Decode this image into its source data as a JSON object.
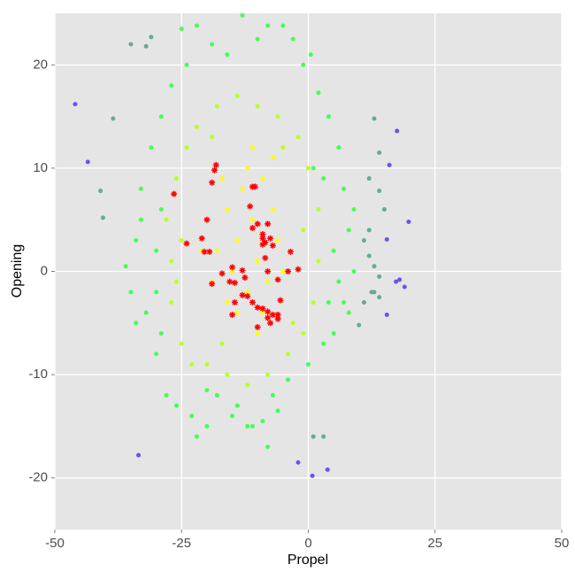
{
  "chart_data": {
    "type": "scatter",
    "xlabel": "Propel",
    "ylabel": "Opening",
    "xlim": [
      -50,
      50
    ],
    "ylim": [
      -25,
      25
    ],
    "xticks": [
      -50,
      -25,
      0,
      25,
      50
    ],
    "yticks": [
      -20,
      -10,
      0,
      10,
      20
    ],
    "grid": true,
    "series": [
      {
        "color": "#44ff55",
        "marker": "circle",
        "x": [
          -35,
          -34,
          -33,
          -32,
          -31,
          -30,
          -29,
          -28,
          -27,
          -26,
          -25,
          -24,
          -23,
          -22,
          -20,
          -19,
          -18,
          -16,
          -14,
          -13,
          -12,
          -10,
          -9,
          -8,
          -7,
          -6,
          -5,
          -4,
          -3,
          -1,
          0,
          0.5,
          2,
          3,
          4,
          5,
          6,
          7,
          8,
          8,
          9,
          9,
          7,
          -36,
          -34,
          -33,
          -30,
          -30,
          -29,
          -29,
          -15,
          -20,
          -22,
          -11,
          -8,
          1,
          3,
          4,
          5,
          6
        ],
        "values": [
          -2,
          3,
          8,
          -4,
          12,
          -8,
          15,
          -12,
          18,
          -13,
          23.5,
          20,
          -14,
          23.8,
          -11.5,
          22,
          -12,
          21,
          -13,
          24.8,
          -15,
          22.5,
          -14.5,
          23.8,
          -12,
          -13.5,
          23.8,
          -10.5,
          22.5,
          20,
          -9,
          21,
          17.3,
          -7,
          15,
          -6,
          12,
          8,
          -4,
          4,
          0,
          6,
          -3,
          0.5,
          -5,
          5,
          2,
          -2,
          6,
          -6,
          -14,
          -15,
          -16,
          -15,
          -17,
          10,
          9,
          -3,
          2,
          -1
        ]
      },
      {
        "color": "#bbff22",
        "marker": "circle",
        "x": [
          -28,
          -27,
          -26,
          -25,
          -24,
          -23,
          -22,
          -20,
          -18,
          -16,
          -14,
          -12,
          -10,
          -8,
          -6,
          -4,
          -2,
          -1,
          0,
          1,
          2,
          2,
          -1,
          -27,
          -26,
          -25,
          -19,
          -5,
          -3,
          -17
        ],
        "values": [
          5,
          -3,
          9,
          -7,
          12,
          -9,
          14,
          -9,
          16,
          -10,
          17,
          -11,
          16,
          -10,
          15,
          -8,
          13,
          -6,
          10,
          -3,
          6,
          1,
          4,
          1,
          -1,
          3,
          13,
          12,
          -5,
          -7
        ]
      },
      {
        "color": "#ffff00",
        "marker": "circle",
        "x": [
          -20,
          -18,
          -16,
          -15,
          -14,
          -13,
          -12,
          -11,
          -10,
          -9,
          -8,
          -7,
          -6,
          -17,
          -19,
          -12,
          -14,
          -9,
          -5,
          -21,
          -16,
          -11,
          -10,
          -7
        ],
        "values": [
          5,
          2,
          6,
          0,
          3,
          8,
          -2,
          5,
          1,
          9,
          -1,
          6,
          3,
          9,
          -1,
          10,
          -4,
          -4,
          0,
          2,
          -3,
          12,
          -6,
          11
        ]
      },
      {
        "color": "#66aa99",
        "marker": "circle",
        "x": [
          -41,
          -40.5,
          -38.5,
          -35,
          -32,
          -31,
          13,
          12,
          14,
          14,
          15,
          12,
          13,
          14,
          13,
          14,
          11,
          12,
          1,
          3,
          11,
          10,
          12.5
        ],
        "values": [
          7.8,
          5.2,
          14.8,
          22,
          21.8,
          22.7,
          14.8,
          9,
          11.5,
          7.8,
          6,
          1.5,
          0.5,
          -0.5,
          -2,
          -2.5,
          3,
          4,
          -16,
          -16,
          -3,
          -5.2,
          -2
        ]
      },
      {
        "color": "#6655ee",
        "marker": "circle",
        "x": [
          -46,
          -43.5,
          -33.5,
          -2,
          0.8,
          3.8,
          17.5,
          19.8,
          18,
          19,
          17.3,
          15.5,
          15.5,
          16
        ],
        "values": [
          16.2,
          10.6,
          -17.8,
          -18.5,
          -19.8,
          -19.2,
          13.6,
          4.8,
          -0.8,
          -1.5,
          -1,
          -4.2,
          3.1,
          10.3
        ]
      },
      {
        "color": "#ff0000",
        "marker": "star",
        "x": [
          -26.5,
          -24,
          -21,
          -20.5,
          -19.5,
          -20,
          -19,
          -18.5,
          -18.2,
          -19,
          -17,
          -15,
          -15.5,
          -14.5,
          -15,
          -14.5,
          -13,
          -12.5,
          -13,
          -12,
          -11,
          -11,
          -10.5,
          -11.5,
          -11,
          -10,
          -9,
          -9,
          -8.5,
          -8,
          -7.5,
          -7,
          -8.5,
          -8,
          -10,
          -9,
          -8,
          -7,
          -6,
          -6,
          -8,
          -7.5,
          -10,
          -6,
          -5.5,
          -4,
          -3.5,
          -2,
          -9
        ],
        "values": [
          7.5,
          2.7,
          3.2,
          1.9,
          1.9,
          5,
          8.6,
          9.8,
          10.3,
          -1.2,
          -0.2,
          0.4,
          -1,
          -1.1,
          -4.2,
          -3,
          0.1,
          -0.6,
          -2.3,
          -2.4,
          -3,
          8.2,
          8.2,
          6.3,
          4.2,
          4.6,
          3.2,
          2.6,
          2.8,
          4.6,
          3.2,
          2.5,
          1.3,
          0,
          -3.5,
          -3.6,
          -3.9,
          -4.2,
          -4.2,
          -4.6,
          -4.5,
          -5,
          -5.4,
          -0.8,
          -2.8,
          0,
          1.9,
          0.2,
          3.6
        ]
      }
    ]
  }
}
